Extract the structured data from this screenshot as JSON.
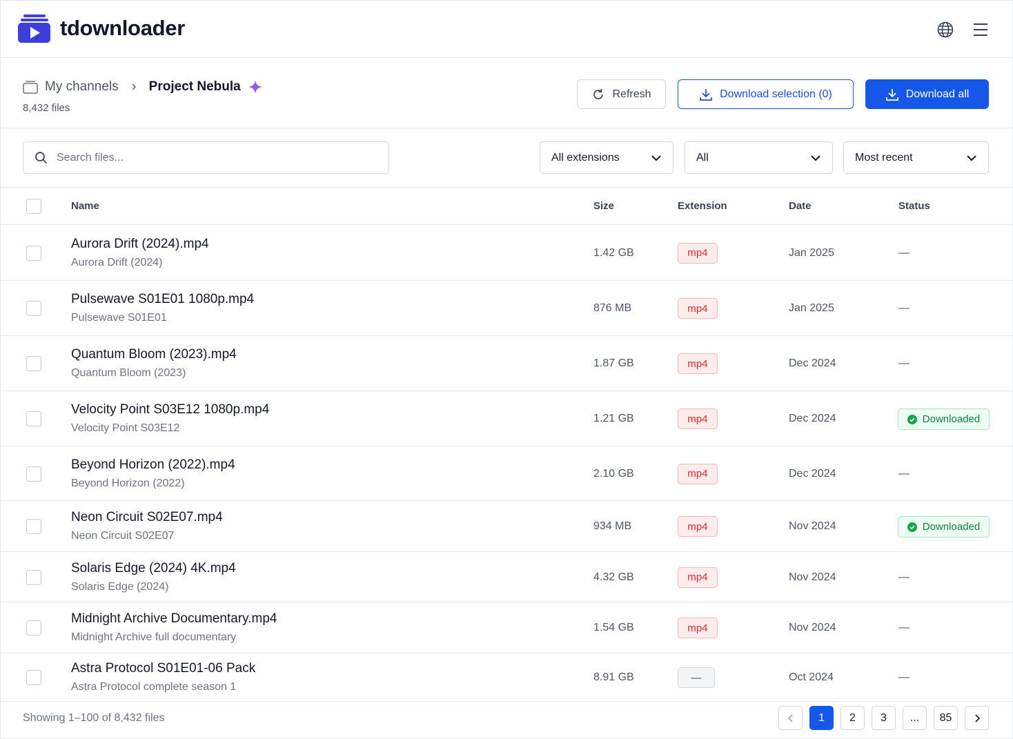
{
  "header": {
    "brand": "tdownloader"
  },
  "breadcrumb": {
    "parent": "My channels",
    "current": "Project Nebula",
    "count": "8,432 files"
  },
  "actions": {
    "refresh": "Refresh",
    "download_selection": "Download selection (0)",
    "download_all": "Download all"
  },
  "filters": {
    "search_placeholder": "Search files...",
    "extension": "All extensions",
    "status": "All",
    "sort": "Most recent"
  },
  "table": {
    "columns": [
      "Name",
      "Size",
      "Extension",
      "Date",
      "Status"
    ],
    "rows": [
      {
        "name": "Aurora Drift (2024).mp4",
        "subtitle": "Aurora Drift (2024)",
        "size": "1.42 GB",
        "extension": "mp4",
        "ext_color": "red",
        "date": "Jan 2025",
        "status": "—",
        "downloaded": false
      },
      {
        "name": "Pulsewave S01E01 1080p.mp4",
        "subtitle": "Pulsewave S01E01",
        "size": "876 MB",
        "extension": "mp4",
        "ext_color": "red",
        "date": "Jan 2025",
        "status": "—",
        "downloaded": false
      },
      {
        "name": "Quantum Bloom (2023).mp4",
        "subtitle": "Quantum Bloom (2023)",
        "size": "1.87 GB",
        "extension": "mp4",
        "ext_color": "red",
        "date": "Dec 2024",
        "status": "—",
        "downloaded": false
      },
      {
        "name": "Velocity Point S03E12 1080p.mp4",
        "subtitle": "Velocity Point S03E12",
        "size": "1.21 GB",
        "extension": "mp4",
        "ext_color": "red",
        "date": "Dec 2024",
        "status": "Downloaded",
        "downloaded": true
      },
      {
        "name": "Beyond Horizon (2022).mp4",
        "subtitle": "Beyond Horizon (2022)",
        "size": "2.10 GB",
        "extension": "mp4",
        "ext_color": "red",
        "date": "Dec 2024",
        "status": "—",
        "downloaded": false
      },
      {
        "name": "Neon Circuit S02E07.mp4",
        "subtitle": "Neon Circuit S02E07",
        "size": "934 MB",
        "extension": "mp4",
        "ext_color": "red",
        "date": "Nov 2024",
        "status": "Downloaded",
        "downloaded": true
      },
      {
        "name": "Solaris Edge (2024) 4K.mp4",
        "subtitle": "Solaris Edge (2024)",
        "size": "4.32 GB",
        "extension": "mp4",
        "ext_color": "red",
        "date": "Nov 2024",
        "status": "—",
        "downloaded": false
      },
      {
        "name": "Midnight Archive Documentary.mp4",
        "subtitle": "Midnight Archive full documentary",
        "size": "1.54 GB",
        "extension": "mp4",
        "ext_color": "red",
        "date": "Nov 2024",
        "status": "—",
        "downloaded": false
      },
      {
        "name": "Astra Protocol S01E01-06 Pack",
        "subtitle": "Astra Protocol complete season 1",
        "size": "8.91 GB",
        "extension": "—",
        "ext_color": "gray",
        "date": "Oct 2024",
        "status": "—",
        "downloaded": false
      }
    ]
  },
  "footer": {
    "summary": "Showing 1–100 of 8,432 files",
    "pages": [
      "1",
      "2",
      "3",
      "...",
      "85"
    ]
  }
}
